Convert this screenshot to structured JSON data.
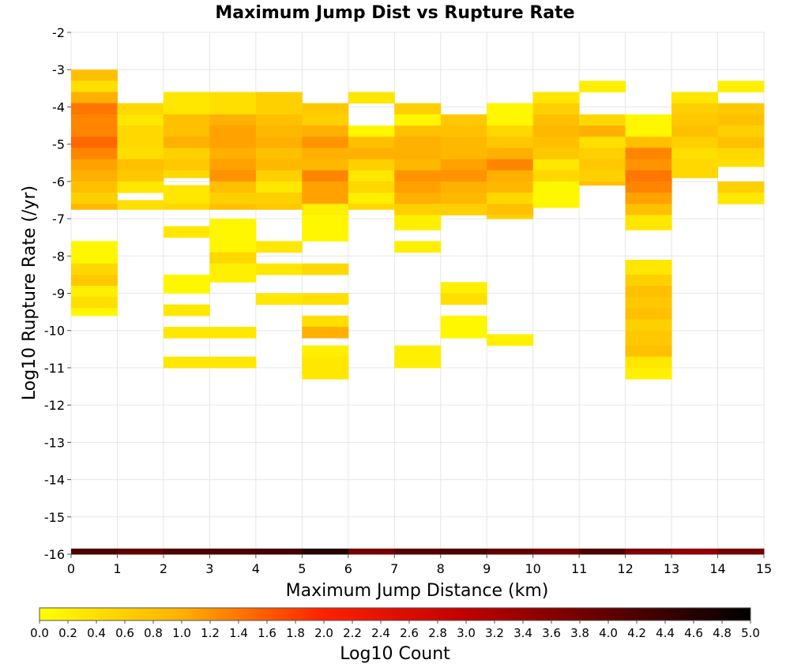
{
  "chart_data": {
    "type": "heatmap",
    "title": "Maximum Jump Dist vs Rupture Rate",
    "xlabel": "Maximum Jump Distance (km)",
    "ylabel": "Log10 Rupture Rate (/yr)",
    "xlim": [
      0,
      15
    ],
    "ylim": [
      -16,
      -2
    ],
    "x_ticks": [
      0,
      1,
      2,
      3,
      4,
      5,
      6,
      7,
      8,
      9,
      10,
      11,
      12,
      13,
      14,
      15
    ],
    "y_ticks": [
      -2,
      -3,
      -4,
      -5,
      -6,
      -7,
      -8,
      -9,
      -10,
      -11,
      -12,
      -13,
      -14,
      -15,
      -16
    ],
    "x_bin_width": 1,
    "y_bin_height": 0.3,
    "grid": true,
    "colorbar": {
      "label": "Log10 Count",
      "range": [
        0.0,
        5.0
      ],
      "ticks": [
        "0.0",
        "0.2",
        "0.4",
        "0.6",
        "0.8",
        "1.0",
        "1.2",
        "1.4",
        "1.6",
        "1.8",
        "2.0",
        "2.2",
        "2.4",
        "2.6",
        "2.8",
        "3.0",
        "3.2",
        "3.4",
        "3.6",
        "3.8",
        "4.0",
        "4.2",
        "4.4",
        "4.6",
        "4.8",
        "5.0"
      ],
      "stops": [
        {
          "v": 0.0,
          "color": "#ffff00"
        },
        {
          "v": 1.0,
          "color": "#ffb000"
        },
        {
          "v": 2.0,
          "color": "#ff2000"
        },
        {
          "v": 3.0,
          "color": "#c00000"
        },
        {
          "v": 4.0,
          "color": "#600000"
        },
        {
          "v": 5.0,
          "color": "#000000"
        }
      ]
    },
    "columns": [
      {
        "x": 0,
        "cells": [
          [
            -3.3,
            -3.0,
            0.8
          ],
          [
            -3.6,
            -3.3,
            0.4
          ],
          [
            -3.9,
            -3.6,
            1.0
          ],
          [
            -4.2,
            -3.9,
            1.4
          ],
          [
            -4.5,
            -4.2,
            1.3
          ],
          [
            -4.8,
            -4.5,
            1.3
          ],
          [
            -5.1,
            -4.8,
            1.5
          ],
          [
            -5.4,
            -5.1,
            1.3
          ],
          [
            -5.7,
            -5.4,
            1.1
          ],
          [
            -6.0,
            -5.7,
            1.0
          ],
          [
            -6.3,
            -6.0,
            0.8
          ],
          [
            -6.6,
            -6.3,
            0.6
          ],
          [
            -6.75,
            -6.6,
            0.9
          ],
          [
            -7.9,
            -7.6,
            0.1
          ],
          [
            -8.2,
            -7.9,
            0.1
          ],
          [
            -8.5,
            -8.2,
            0.5
          ],
          [
            -8.8,
            -8.5,
            0.7
          ],
          [
            -9.1,
            -8.8,
            0.2
          ],
          [
            -9.4,
            -9.1,
            0.4
          ],
          [
            -9.6,
            -9.4,
            0.1
          ],
          [
            -16.0,
            -15.85,
            4.2
          ]
        ]
      },
      {
        "x": 1,
        "cells": [
          [
            -4.2,
            -3.9,
            0.5
          ],
          [
            -4.5,
            -4.2,
            0.3
          ],
          [
            -4.8,
            -4.5,
            0.5
          ],
          [
            -5.1,
            -4.8,
            0.5
          ],
          [
            -5.4,
            -5.1,
            0.4
          ],
          [
            -5.7,
            -5.4,
            0.8
          ],
          [
            -6.0,
            -5.7,
            0.7
          ],
          [
            -6.3,
            -6.0,
            0.3
          ],
          [
            -6.75,
            -6.5,
            0.4
          ],
          [
            -16.0,
            -15.85,
            4.0
          ]
        ]
      },
      {
        "x": 2,
        "cells": [
          [
            -3.9,
            -3.6,
            0.3
          ],
          [
            -4.2,
            -3.9,
            0.3
          ],
          [
            -4.5,
            -4.2,
            0.8
          ],
          [
            -4.8,
            -4.5,
            0.8
          ],
          [
            -5.1,
            -4.8,
            1.0
          ],
          [
            -5.4,
            -5.1,
            0.6
          ],
          [
            -5.7,
            -5.4,
            0.7
          ],
          [
            -5.9,
            -5.7,
            0.5
          ],
          [
            -6.3,
            -6.1,
            0.3
          ],
          [
            -6.6,
            -6.3,
            0.3
          ],
          [
            -6.75,
            -6.6,
            0.5
          ],
          [
            -7.5,
            -7.2,
            0.3
          ],
          [
            -9.0,
            -8.5,
            0.1
          ],
          [
            -9.6,
            -9.3,
            0.3
          ],
          [
            -10.2,
            -9.9,
            0.3
          ],
          [
            -11.0,
            -10.7,
            0.3
          ],
          [
            -16.0,
            -15.85,
            4.2
          ]
        ]
      },
      {
        "x": 3,
        "cells": [
          [
            -3.9,
            -3.6,
            0.4
          ],
          [
            -4.2,
            -3.9,
            0.4
          ],
          [
            -4.5,
            -4.2,
            1.0
          ],
          [
            -4.8,
            -4.5,
            1.1
          ],
          [
            -5.1,
            -4.8,
            1.1
          ],
          [
            -5.4,
            -5.1,
            1.0
          ],
          [
            -5.7,
            -5.4,
            1.1
          ],
          [
            -6.0,
            -5.7,
            1.2
          ],
          [
            -6.3,
            -6.0,
            0.8
          ],
          [
            -6.6,
            -6.3,
            0.6
          ],
          [
            -6.75,
            -6.6,
            0.8
          ],
          [
            -7.9,
            -7.0,
            0.1
          ],
          [
            -8.2,
            -7.9,
            0.5
          ],
          [
            -8.7,
            -8.2,
            0.2
          ],
          [
            -10.2,
            -9.9,
            0.3
          ],
          [
            -11.0,
            -10.7,
            0.3
          ],
          [
            -16.0,
            -15.85,
            4.2
          ]
        ]
      },
      {
        "x": 4,
        "cells": [
          [
            -3.9,
            -3.6,
            0.6
          ],
          [
            -4.2,
            -3.9,
            0.6
          ],
          [
            -4.5,
            -4.2,
            0.8
          ],
          [
            -4.8,
            -4.5,
            0.9
          ],
          [
            -5.1,
            -4.8,
            1.0
          ],
          [
            -5.4,
            -5.1,
            0.8
          ],
          [
            -5.7,
            -5.4,
            0.9
          ],
          [
            -6.0,
            -5.7,
            0.6
          ],
          [
            -6.3,
            -6.0,
            0.3
          ],
          [
            -6.6,
            -6.3,
            0.6
          ],
          [
            -6.75,
            -6.6,
            0.7
          ],
          [
            -7.9,
            -7.6,
            0.3
          ],
          [
            -8.5,
            -8.2,
            0.3
          ],
          [
            -9.3,
            -9.0,
            0.3
          ],
          [
            -16.0,
            -15.85,
            4.3
          ]
        ]
      },
      {
        "x": 5,
        "cells": [
          [
            -4.2,
            -3.9,
            0.7
          ],
          [
            -4.5,
            -4.2,
            0.6
          ],
          [
            -4.8,
            -4.5,
            1.0
          ],
          [
            -5.1,
            -4.8,
            1.2
          ],
          [
            -5.4,
            -5.1,
            1.0
          ],
          [
            -5.7,
            -5.4,
            0.9
          ],
          [
            -6.0,
            -5.7,
            1.3
          ],
          [
            -6.3,
            -6.0,
            1.1
          ],
          [
            -6.6,
            -6.3,
            1.1
          ],
          [
            -6.9,
            -6.6,
            0.2
          ],
          [
            -7.6,
            -6.9,
            0.1
          ],
          [
            -8.5,
            -8.2,
            0.5
          ],
          [
            -9.3,
            -9.0,
            0.4
          ],
          [
            -9.9,
            -9.6,
            0.4
          ],
          [
            -10.2,
            -9.9,
            1.0
          ],
          [
            -10.7,
            -10.4,
            0.2
          ],
          [
            -11.3,
            -10.7,
            0.3
          ],
          [
            -16.0,
            -15.85,
            4.6
          ]
        ]
      },
      {
        "x": 6,
        "cells": [
          [
            -3.9,
            -3.6,
            0.3
          ],
          [
            -4.8,
            -4.5,
            0.1
          ],
          [
            -5.1,
            -4.8,
            0.8
          ],
          [
            -5.4,
            -5.1,
            1.0
          ],
          [
            -5.7,
            -5.4,
            0.6
          ],
          [
            -6.0,
            -5.7,
            0.3
          ],
          [
            -6.3,
            -6.0,
            0.5
          ],
          [
            -6.6,
            -6.3,
            0.2
          ],
          [
            -6.75,
            -6.6,
            0.5
          ],
          [
            -16.0,
            -15.85,
            3.8
          ]
        ]
      },
      {
        "x": 7,
        "cells": [
          [
            -4.2,
            -3.9,
            0.6
          ],
          [
            -4.5,
            -4.2,
            0.1
          ],
          [
            -4.8,
            -4.5,
            0.8
          ],
          [
            -5.1,
            -4.8,
            1.0
          ],
          [
            -5.4,
            -5.1,
            1.0
          ],
          [
            -5.7,
            -5.4,
            0.9
          ],
          [
            -6.0,
            -5.7,
            1.2
          ],
          [
            -6.3,
            -6.0,
            1.1
          ],
          [
            -6.6,
            -6.3,
            1.0
          ],
          [
            -6.9,
            -6.6,
            0.6
          ],
          [
            -7.3,
            -6.9,
            0.2
          ],
          [
            -7.9,
            -7.6,
            0.2
          ],
          [
            -11.0,
            -10.4,
            0.2
          ],
          [
            -16.0,
            -15.85,
            4.1
          ]
        ]
      },
      {
        "x": 8,
        "cells": [
          [
            -4.5,
            -4.2,
            0.7
          ],
          [
            -4.8,
            -4.5,
            0.8
          ],
          [
            -5.1,
            -4.8,
            0.9
          ],
          [
            -5.4,
            -5.1,
            0.9
          ],
          [
            -5.7,
            -5.4,
            1.1
          ],
          [
            -6.0,
            -5.7,
            1.2
          ],
          [
            -6.3,
            -6.0,
            1.0
          ],
          [
            -6.6,
            -6.3,
            0.9
          ],
          [
            -6.9,
            -6.6,
            0.6
          ],
          [
            -9.0,
            -8.7,
            0.2
          ],
          [
            -9.3,
            -9.0,
            0.4
          ],
          [
            -10.2,
            -9.6,
            0.1
          ],
          [
            -16.0,
            -15.85,
            4.2
          ]
        ]
      },
      {
        "x": 9,
        "cells": [
          [
            -4.5,
            -3.9,
            0.1
          ],
          [
            -4.8,
            -4.5,
            0.5
          ],
          [
            -5.1,
            -4.8,
            0.7
          ],
          [
            -5.4,
            -5.1,
            1.0
          ],
          [
            -5.7,
            -5.4,
            1.3
          ],
          [
            -6.0,
            -5.7,
            1.0
          ],
          [
            -6.3,
            -6.0,
            0.9
          ],
          [
            -6.6,
            -6.3,
            0.5
          ],
          [
            -6.9,
            -6.6,
            0.8
          ],
          [
            -7.0,
            -6.9,
            0.6
          ],
          [
            -10.4,
            -10.1,
            0.2
          ],
          [
            -16.0,
            -15.85,
            4.0
          ]
        ]
      },
      {
        "x": 10,
        "cells": [
          [
            -3.9,
            -3.6,
            0.3
          ],
          [
            -4.2,
            -3.9,
            0.6
          ],
          [
            -4.5,
            -4.2,
            0.8
          ],
          [
            -4.8,
            -4.5,
            0.9
          ],
          [
            -5.1,
            -4.8,
            0.8
          ],
          [
            -5.4,
            -5.1,
            0.7
          ],
          [
            -5.7,
            -5.4,
            0.3
          ],
          [
            -6.0,
            -5.7,
            0.5
          ],
          [
            -6.7,
            -6.0,
            0.1
          ],
          [
            -16.0,
            -15.85,
            3.8
          ]
        ]
      },
      {
        "x": 11,
        "cells": [
          [
            -3.6,
            -3.3,
            0.2
          ],
          [
            -4.5,
            -4.2,
            0.5
          ],
          [
            -4.8,
            -4.5,
            1.0
          ],
          [
            -5.1,
            -4.8,
            0.4
          ],
          [
            -5.4,
            -5.1,
            0.6
          ],
          [
            -5.7,
            -5.4,
            0.7
          ],
          [
            -6.0,
            -5.7,
            0.6
          ],
          [
            -6.1,
            -6.0,
            0.8
          ],
          [
            -16.0,
            -15.85,
            4.2
          ]
        ]
      },
      {
        "x": 12,
        "cells": [
          [
            -4.8,
            -4.2,
            0.1
          ],
          [
            -5.1,
            -4.8,
            0.8
          ],
          [
            -5.4,
            -5.1,
            1.3
          ],
          [
            -5.7,
            -5.4,
            1.2
          ],
          [
            -6.0,
            -5.7,
            1.4
          ],
          [
            -6.3,
            -6.0,
            1.3
          ],
          [
            -6.6,
            -6.3,
            1.1
          ],
          [
            -6.9,
            -6.6,
            0.8
          ],
          [
            -7.3,
            -6.9,
            0.3
          ],
          [
            -8.5,
            -8.1,
            0.3
          ],
          [
            -8.8,
            -8.5,
            0.6
          ],
          [
            -9.1,
            -8.8,
            0.8
          ],
          [
            -9.4,
            -9.1,
            0.7
          ],
          [
            -9.7,
            -9.4,
            0.8
          ],
          [
            -10.0,
            -9.7,
            0.6
          ],
          [
            -10.4,
            -10.0,
            0.7
          ],
          [
            -10.7,
            -10.4,
            0.8
          ],
          [
            -11.0,
            -10.7,
            0.3
          ],
          [
            -11.3,
            -11.0,
            0.2
          ],
          [
            -16.0,
            -15.85,
            3.7
          ]
        ]
      },
      {
        "x": 13,
        "cells": [
          [
            -3.9,
            -3.6,
            0.3
          ],
          [
            -4.2,
            -3.9,
            0.6
          ],
          [
            -4.5,
            -4.2,
            0.7
          ],
          [
            -4.8,
            -4.5,
            0.8
          ],
          [
            -5.1,
            -4.8,
            0.6
          ],
          [
            -5.4,
            -5.1,
            0.4
          ],
          [
            -5.7,
            -5.4,
            0.5
          ],
          [
            -5.9,
            -5.7,
            0.5
          ],
          [
            -16.0,
            -15.85,
            3.5
          ]
        ]
      },
      {
        "x": 14,
        "cells": [
          [
            -3.6,
            -3.3,
            0.2
          ],
          [
            -4.2,
            -3.9,
            0.7
          ],
          [
            -4.5,
            -4.2,
            0.8
          ],
          [
            -4.8,
            -4.5,
            0.6
          ],
          [
            -5.1,
            -4.8,
            0.8
          ],
          [
            -5.4,
            -5.1,
            0.5
          ],
          [
            -5.6,
            -5.4,
            0.4
          ],
          [
            -6.3,
            -6.0,
            0.6
          ],
          [
            -6.6,
            -6.3,
            0.3
          ],
          [
            -16.0,
            -15.85,
            3.8
          ]
        ]
      }
    ]
  }
}
